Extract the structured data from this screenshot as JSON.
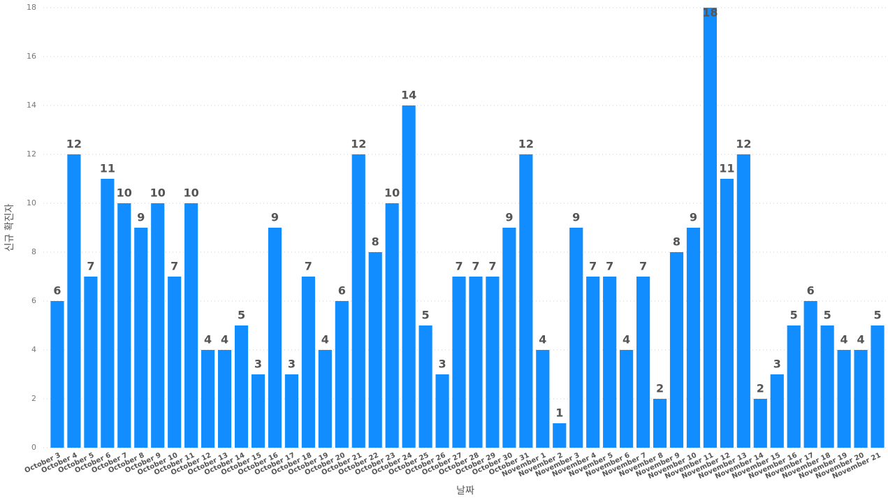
{
  "chart_data": {
    "type": "bar",
    "x_label": "날짜",
    "y_label": "신규 확진자",
    "categories": [
      "October 3",
      "October 4",
      "October 5",
      "October 6",
      "October 7",
      "October 8",
      "October 9",
      "October 10",
      "October 11",
      "October 12",
      "October 13",
      "October 14",
      "October 15",
      "October 16",
      "October 17",
      "October 18",
      "October 19",
      "October 20",
      "October 21",
      "October 22",
      "October 23",
      "October 24",
      "October 25",
      "October 26",
      "October 27",
      "October 28",
      "October 29",
      "October 30",
      "October 31",
      "November 1",
      "November 2",
      "November 3",
      "November 4",
      "November 5",
      "November 6",
      "November 7",
      "November 8",
      "November 9",
      "November 10",
      "November 11",
      "November 12",
      "November 13",
      "November 14",
      "November 15",
      "November 16",
      "November 17",
      "November 18",
      "November 19",
      "November 20",
      "November 21"
    ],
    "values": [
      6,
      12,
      7,
      11,
      10,
      9,
      10,
      7,
      10,
      4,
      4,
      5,
      3,
      9,
      3,
      7,
      4,
      6,
      12,
      8,
      10,
      14,
      5,
      3,
      7,
      7,
      7,
      9,
      12,
      4,
      1,
      9,
      7,
      7,
      4,
      7,
      2,
      8,
      9,
      18,
      11,
      12,
      2,
      3,
      5,
      6,
      5,
      4,
      4,
      5
    ],
    "color": "#118dff",
    "ylim": [
      0,
      18
    ],
    "yticks": [
      0,
      2,
      4,
      6,
      8,
      10,
      12,
      14,
      16,
      18
    ],
    "grid": true
  }
}
